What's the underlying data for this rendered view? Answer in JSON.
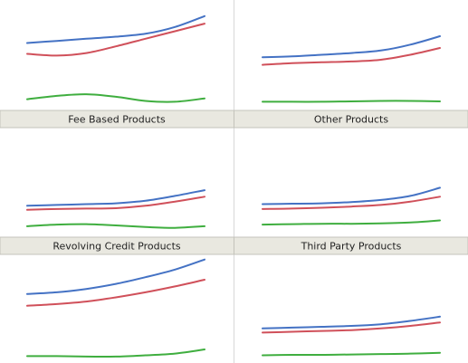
{
  "colors": {
    "blue": "#4472c4",
    "red": "#d0505a",
    "green": "#3fae3f",
    "strip_bg": "#e9e8e0",
    "strip_border": "#c4c3bb",
    "divider": "#d8d8d8"
  },
  "chart_data": [
    {
      "type": "line",
      "title": "",
      "strip_label": "Fee Based Products",
      "x": [
        0,
        1,
        2,
        3,
        4,
        5,
        6
      ],
      "series": [
        {
          "color": "#4472c4",
          "values": [
            7.6,
            7.85,
            8.1,
            8.35,
            8.7,
            9.5,
            10.8
          ]
        },
        {
          "color": "#d0505a",
          "values": [
            6.3,
            6.1,
            6.4,
            7.2,
            8.1,
            9.0,
            9.9
          ]
        },
        {
          "color": "#3fae3f",
          "values": [
            0.9,
            1.3,
            1.5,
            1.2,
            0.7,
            0.6,
            1.0
          ]
        }
      ]
    },
    {
      "type": "line",
      "title": "",
      "strip_label": "Other Products",
      "x": [
        0,
        1,
        2,
        3,
        4,
        5,
        6
      ],
      "series": [
        {
          "color": "#4472c4",
          "values": [
            5.9,
            6.0,
            6.2,
            6.4,
            6.7,
            7.4,
            8.4
          ]
        },
        {
          "color": "#d0505a",
          "values": [
            5.0,
            5.2,
            5.3,
            5.4,
            5.6,
            6.2,
            7.0
          ]
        },
        {
          "color": "#3fae3f",
          "values": [
            0.6,
            0.6,
            0.6,
            0.65,
            0.7,
            0.7,
            0.65
          ]
        }
      ]
    },
    {
      "type": "line",
      "title": "",
      "strip_label": "Revolving Credit Products",
      "x": [
        0,
        1,
        2,
        3,
        4,
        5,
        6
      ],
      "series": [
        {
          "color": "#4472c4",
          "values": [
            3.4,
            3.5,
            3.6,
            3.7,
            4.0,
            4.6,
            5.3
          ]
        },
        {
          "color": "#d0505a",
          "values": [
            2.9,
            3.0,
            3.05,
            3.1,
            3.4,
            3.9,
            4.5
          ]
        },
        {
          "color": "#3fae3f",
          "values": [
            0.9,
            1.1,
            1.15,
            1.0,
            0.8,
            0.7,
            0.9
          ]
        }
      ]
    },
    {
      "type": "line",
      "title": "",
      "strip_label": "Third Party Products",
      "x": [
        0,
        1,
        2,
        3,
        4,
        5,
        6
      ],
      "series": [
        {
          "color": "#4472c4",
          "values": [
            3.6,
            3.65,
            3.7,
            3.85,
            4.1,
            4.6,
            5.6
          ]
        },
        {
          "color": "#d0505a",
          "values": [
            3.0,
            3.05,
            3.15,
            3.3,
            3.5,
            3.9,
            4.5
          ]
        },
        {
          "color": "#3fae3f",
          "values": [
            1.1,
            1.15,
            1.2,
            1.2,
            1.25,
            1.35,
            1.6
          ]
        }
      ]
    },
    {
      "type": "line",
      "title": "",
      "strip_label": "",
      "x": [
        0,
        1,
        2,
        3,
        4,
        5,
        6
      ],
      "series": [
        {
          "color": "#4472c4",
          "values": [
            8.0,
            8.2,
            8.6,
            9.2,
            10.0,
            10.9,
            12.1
          ]
        },
        {
          "color": "#d0505a",
          "values": [
            6.6,
            6.8,
            7.1,
            7.6,
            8.2,
            8.9,
            9.7
          ]
        },
        {
          "color": "#3fae3f",
          "values": [
            0.6,
            0.6,
            0.55,
            0.55,
            0.7,
            0.9,
            1.4
          ]
        }
      ]
    },
    {
      "type": "line",
      "title": "",
      "strip_label": "",
      "x": [
        0,
        1,
        2,
        3,
        4,
        5,
        6
      ],
      "series": [
        {
          "color": "#4472c4",
          "values": [
            3.9,
            4.0,
            4.1,
            4.2,
            4.4,
            4.8,
            5.3
          ]
        },
        {
          "color": "#d0505a",
          "values": [
            3.4,
            3.5,
            3.6,
            3.7,
            3.9,
            4.2,
            4.6
          ]
        },
        {
          "color": "#3fae3f",
          "values": [
            0.7,
            0.75,
            0.75,
            0.8,
            0.85,
            0.9,
            1.0
          ]
        }
      ]
    }
  ]
}
